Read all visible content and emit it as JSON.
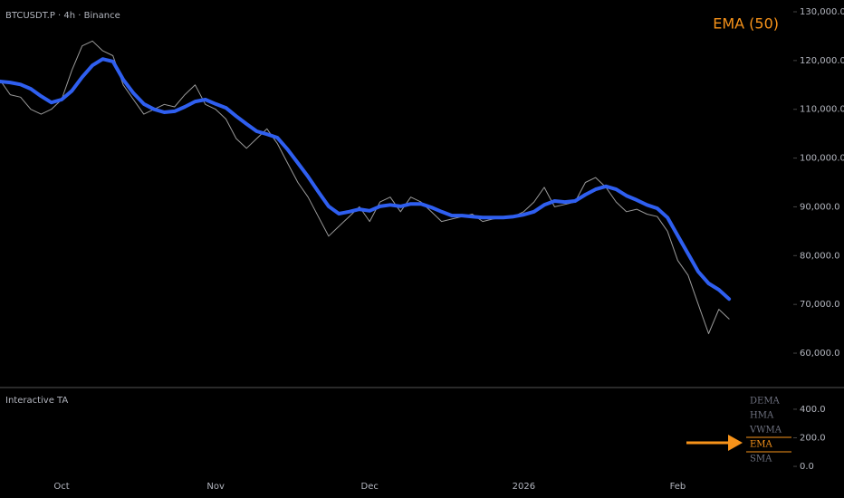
{
  "chart_data": {
    "type": "line",
    "title": "BTCUSDT.P · 4h · Binance",
    "categories": [
      null,
      null,
      null,
      null,
      null,
      null,
      "Oct",
      null,
      null,
      null,
      null,
      null,
      null,
      null,
      null,
      null,
      null,
      null,
      null,
      null,
      null,
      "Nov",
      null,
      null,
      null,
      null,
      null,
      null,
      null,
      null,
      null,
      null,
      null,
      null,
      null,
      null,
      "Dec",
      null,
      null,
      null,
      null,
      null,
      null,
      null,
      null,
      null,
      null,
      null,
      null,
      null,
      null,
      "2026",
      null,
      null,
      null,
      null,
      null,
      null,
      null,
      null,
      null,
      null,
      null,
      null,
      null,
      null,
      "Feb",
      null,
      null,
      null,
      null,
      null
    ],
    "series": [
      {
        "color": "#9a9a9a",
        "values": [
          116000,
          113000,
          112500,
          110000,
          109000,
          110000,
          112000,
          118000,
          123000,
          124000,
          122000,
          121000,
          115000,
          112000,
          109000,
          110000,
          111000,
          110500,
          113000,
          115000,
          111000,
          110000,
          108000,
          104000,
          102000,
          104000,
          106000,
          103000,
          99000,
          95000,
          92000,
          88000,
          84000,
          86000,
          88000,
          90000,
          87000,
          91000,
          92000,
          89000,
          92000,
          91000,
          89000,
          87000,
          87500,
          88000,
          88500,
          87000,
          87500,
          87800,
          88000,
          89000,
          91000,
          94000,
          90000,
          90500,
          91000,
          95000,
          96000,
          94000,
          91000,
          89000,
          89500,
          88500,
          88000,
          85000,
          79000,
          76000,
          70000,
          64000,
          69000,
          67000
        ]
      },
      {
        "name": "EMA (50)",
        "color": "#2f5ff0",
        "values": [
          115700,
          115500,
          115100,
          114200,
          112700,
          111400,
          112000,
          113800,
          116600,
          119000,
          120300,
          119800,
          116100,
          113300,
          111100,
          110000,
          109400,
          109600,
          110500,
          111600,
          112000,
          111100,
          110300,
          108600,
          107000,
          105500,
          104900,
          104200,
          101800,
          99000,
          96200,
          93100,
          90100,
          88600,
          89000,
          89500,
          89200,
          90100,
          90400,
          90100,
          90600,
          90600,
          89900,
          89000,
          88200,
          88200,
          88000,
          87800,
          87800,
          87800,
          88000,
          88400,
          89000,
          90400,
          91200,
          91000,
          91200,
          92500,
          93600,
          94200,
          93600,
          92300,
          91400,
          90400,
          89700,
          87800,
          84100,
          80400,
          76700,
          74300,
          73000,
          71100
        ]
      }
    ],
    "ylim": [
      52950,
      132414
    ],
    "yticks": [
      {
        "value": 130000,
        "label": "130,000.0"
      },
      {
        "value": 120000,
        "label": "120,000.0"
      },
      {
        "value": 110000,
        "label": "110,000.0"
      },
      {
        "value": 100000,
        "label": "100,000.0"
      },
      {
        "value": 90000,
        "label": "90,000.0"
      },
      {
        "value": 80000,
        "label": "80,000.0"
      },
      {
        "value": 70000,
        "label": "70,000.0"
      },
      {
        "value": 60000,
        "label": "60,000.0"
      }
    ]
  },
  "indicator_panel": {
    "title": "Interactive TA",
    "ylim": [
      -63,
      552
    ],
    "yticks": [
      {
        "value": 400,
        "label": "400.0"
      },
      {
        "value": 200,
        "label": "200.0"
      },
      {
        "value": 0,
        "label": "0.0"
      }
    ],
    "options": [
      "DEMA",
      "HMA",
      "VWMA",
      "EMA",
      "SMA"
    ],
    "selected": 3
  }
}
